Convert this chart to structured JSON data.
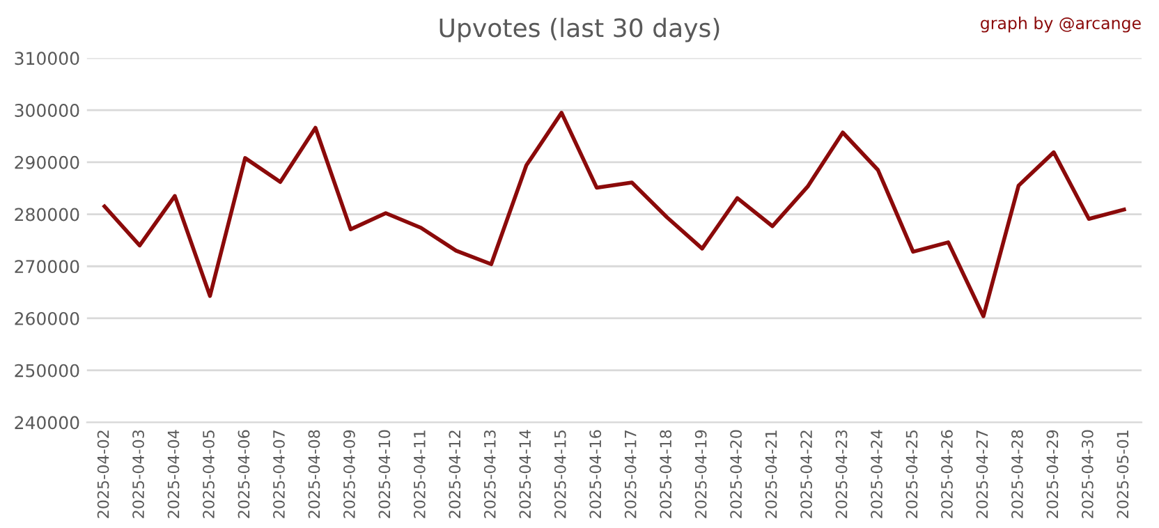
{
  "chart_data": {
    "type": "line",
    "title": "Upvotes (last 30 days)",
    "annotations": [
      "graph by @arcange"
    ],
    "categories": [
      "2025-04-02",
      "2025-04-03",
      "2025-04-04",
      "2025-04-05",
      "2025-04-06",
      "2025-04-07",
      "2025-04-08",
      "2025-04-09",
      "2025-04-10",
      "2025-04-11",
      "2025-04-12",
      "2025-04-13",
      "2025-04-14",
      "2025-04-15",
      "2025-04-16",
      "2025-04-17",
      "2025-04-18",
      "2025-04-19",
      "2025-04-20",
      "2025-04-21",
      "2025-04-22",
      "2025-04-23",
      "2025-04-24",
      "2025-04-25",
      "2025-04-26",
      "2025-04-27",
      "2025-04-28",
      "2025-04-29",
      "2025-04-30",
      "2025-05-01"
    ],
    "series": [
      {
        "color": "#8b0a0a",
        "values": [
          281500,
          274000,
          283500,
          264300,
          290800,
          286200,
          296600,
          277100,
          280200,
          277400,
          273000,
          270400,
          289400,
          299500,
          285100,
          286100,
          279400,
          273400,
          283100,
          277700,
          285300,
          295700,
          288500,
          272800,
          274600,
          260400,
          285500,
          291900,
          279100,
          280900
        ]
      }
    ],
    "ylim": [
      240000,
      310000
    ],
    "yticks": [
      240000,
      250000,
      260000,
      270000,
      280000,
      290000,
      300000,
      310000
    ],
    "grid": "y",
    "legend": false,
    "marker": "none",
    "line_style": "solid"
  }
}
